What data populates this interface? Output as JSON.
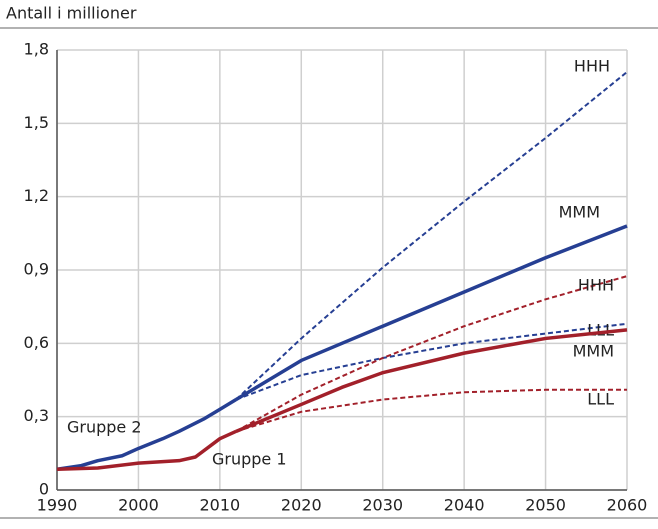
{
  "chart_data": {
    "type": "line",
    "title": "Antall i millioner",
    "xlim": [
      1990,
      2060
    ],
    "xticks": [
      1990,
      2000,
      2010,
      2020,
      2030,
      2040,
      2050,
      2060
    ],
    "ylim": [
      0,
      1.8
    ],
    "yticks": [
      0,
      {
        "value": 0.3,
        "label": "0,3"
      },
      {
        "value": 0.6,
        "label": "0,6"
      },
      {
        "value": 0.9,
        "label": "0,9"
      },
      {
        "value": 1.2,
        "label": "1,2"
      },
      {
        "value": 1.5,
        "label": "1,5"
      },
      {
        "value": 1.8,
        "label": "1,8"
      }
    ],
    "grid": true,
    "series": [
      {
        "name": "Gruppe 2",
        "color": "#263f93",
        "style": "solid",
        "x": [
          1990,
          1993,
          1995,
          1998,
          2000,
          2003,
          2005,
          2008,
          2010,
          2012
        ],
        "values": [
          0.085,
          0.1,
          0.12,
          0.14,
          0.17,
          0.21,
          0.24,
          0.29,
          0.33,
          0.37
        ]
      },
      {
        "name": "HHH",
        "color": "#263f93",
        "style": "dashed",
        "x": [
          2012,
          2020,
          2030,
          2040,
          2050,
          2060
        ],
        "values": [
          0.37,
          0.62,
          0.91,
          1.18,
          1.44,
          1.71
        ]
      },
      {
        "name": "MMM",
        "color": "#263f93",
        "style": "solid",
        "x": [
          2012,
          2020,
          2030,
          2040,
          2050,
          2060
        ],
        "values": [
          0.37,
          0.53,
          0.67,
          0.81,
          0.95,
          1.08
        ]
      },
      {
        "name": "LLL",
        "color": "#263f93",
        "style": "dashed",
        "x": [
          2012,
          2020,
          2030,
          2040,
          2050,
          2060
        ],
        "values": [
          0.37,
          0.47,
          0.54,
          0.6,
          0.64,
          0.68
        ]
      },
      {
        "name": "Gruppe 1",
        "color": "#a2202a",
        "style": "solid",
        "x": [
          1990,
          1995,
          2000,
          2005,
          2007,
          2010,
          2012
        ],
        "values": [
          0.085,
          0.09,
          0.11,
          0.12,
          0.135,
          0.21,
          0.24
        ]
      },
      {
        "name": "HHH",
        "color": "#a2202a",
        "style": "dashed",
        "x": [
          2012,
          2020,
          2030,
          2040,
          2050,
          2060
        ],
        "values": [
          0.24,
          0.39,
          0.54,
          0.67,
          0.78,
          0.875
        ]
      },
      {
        "name": "MMM",
        "color": "#a2202a",
        "style": "solid",
        "x": [
          2012,
          2020,
          2025,
          2030,
          2040,
          2050,
          2060
        ],
        "values": [
          0.24,
          0.35,
          0.42,
          0.48,
          0.56,
          0.62,
          0.655
        ]
      },
      {
        "name": "LLL",
        "color": "#a2202a",
        "style": "dashed",
        "x": [
          2012,
          2020,
          2030,
          2040,
          2050,
          2060
        ],
        "values": [
          0.24,
          0.32,
          0.37,
          0.4,
          0.41,
          0.41
        ]
      }
    ]
  }
}
